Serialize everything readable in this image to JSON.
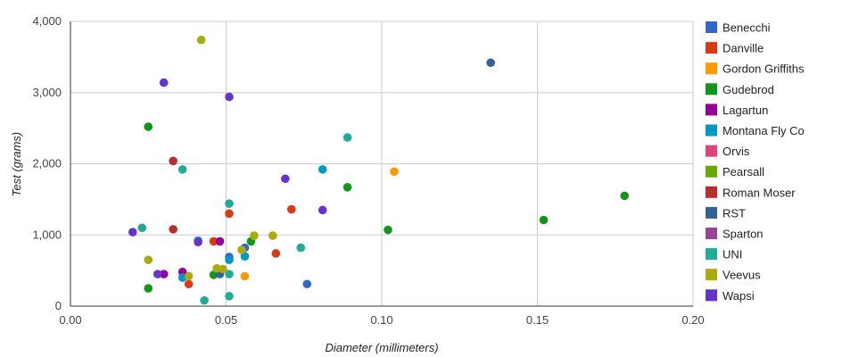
{
  "chart_data": {
    "type": "scatter",
    "title": "",
    "xlabel": "Diameter (millimeters)",
    "ylabel": "Test (grams)",
    "xlim": [
      0,
      0.2
    ],
    "ylim": [
      0,
      4000
    ],
    "x_ticks": [
      "0.00",
      "0.05",
      "0.10",
      "0.15",
      "0.20"
    ],
    "y_ticks": [
      "0",
      "1,000",
      "2,000",
      "3,000",
      "4,000"
    ],
    "x_tick_values": [
      0,
      0.05,
      0.1,
      0.15,
      0.2
    ],
    "y_tick_values": [
      0,
      1000,
      2000,
      3000,
      4000
    ],
    "grid": true,
    "legend_position": "right",
    "series": [
      {
        "name": "Benecchi",
        "color": "#3366cc",
        "points": [
          [
            0.051,
            690
          ],
          [
            0.076,
            310
          ],
          [
            0.056,
            820
          ]
        ]
      },
      {
        "name": "Danville",
        "color": "#dc3912",
        "points": [
          [
            0.051,
            1300
          ],
          [
            0.071,
            1360
          ],
          [
            0.066,
            740
          ],
          [
            0.046,
            910
          ],
          [
            0.038,
            310
          ]
        ]
      },
      {
        "name": "Gordon Griffiths",
        "color": "#ff9900",
        "points": [
          [
            0.104,
            1890
          ],
          [
            0.056,
            420
          ]
        ]
      },
      {
        "name": "Gudebrod",
        "color": "#109618",
        "points": [
          [
            0.025,
            2520
          ],
          [
            0.089,
            1670
          ],
          [
            0.102,
            1070
          ],
          [
            0.152,
            1210
          ],
          [
            0.178,
            1550
          ],
          [
            0.058,
            910
          ],
          [
            0.046,
            440
          ],
          [
            0.025,
            250
          ]
        ]
      },
      {
        "name": "Lagartun",
        "color": "#990099",
        "points": [
          [
            0.048,
            910
          ],
          [
            0.036,
            480
          ],
          [
            0.03,
            450
          ]
        ]
      },
      {
        "name": "Montana Fly Co",
        "color": "#0099c6",
        "points": [
          [
            0.081,
            1920
          ],
          [
            0.056,
            700
          ],
          [
            0.041,
            920
          ],
          [
            0.036,
            400
          ],
          [
            0.051,
            650
          ]
        ]
      },
      {
        "name": "Orvis",
        "color": "#dd4477",
        "points": []
      },
      {
        "name": "Pearsall",
        "color": "#66aa00",
        "points": []
      },
      {
        "name": "Roman Moser",
        "color": "#b82e2e",
        "points": [
          [
            0.033,
            2040
          ],
          [
            0.033,
            1080
          ]
        ]
      },
      {
        "name": "RST",
        "color": "#316395",
        "points": [
          [
            0.135,
            3420
          ],
          [
            0.048,
            450
          ]
        ]
      },
      {
        "name": "Sparton",
        "color": "#994499",
        "points": []
      },
      {
        "name": "UNI",
        "color": "#22aa99",
        "points": [
          [
            0.089,
            2370
          ],
          [
            0.036,
            1920
          ],
          [
            0.051,
            1440
          ],
          [
            0.023,
            1100
          ],
          [
            0.074,
            820
          ],
          [
            0.051,
            450
          ],
          [
            0.043,
            80
          ],
          [
            0.051,
            140
          ]
        ]
      },
      {
        "name": "Veevus",
        "color": "#aaaa11",
        "points": [
          [
            0.042,
            3740
          ],
          [
            0.025,
            650
          ],
          [
            0.059,
            990
          ],
          [
            0.065,
            990
          ],
          [
            0.055,
            790
          ],
          [
            0.047,
            530
          ],
          [
            0.049,
            520
          ],
          [
            0.038,
            420
          ]
        ]
      },
      {
        "name": "Wapsi",
        "color": "#6633cc",
        "points": [
          [
            0.03,
            3140
          ],
          [
            0.051,
            2940
          ],
          [
            0.069,
            1790
          ],
          [
            0.081,
            1350
          ],
          [
            0.02,
            1040
          ],
          [
            0.041,
            900
          ],
          [
            0.028,
            450
          ]
        ]
      }
    ]
  }
}
